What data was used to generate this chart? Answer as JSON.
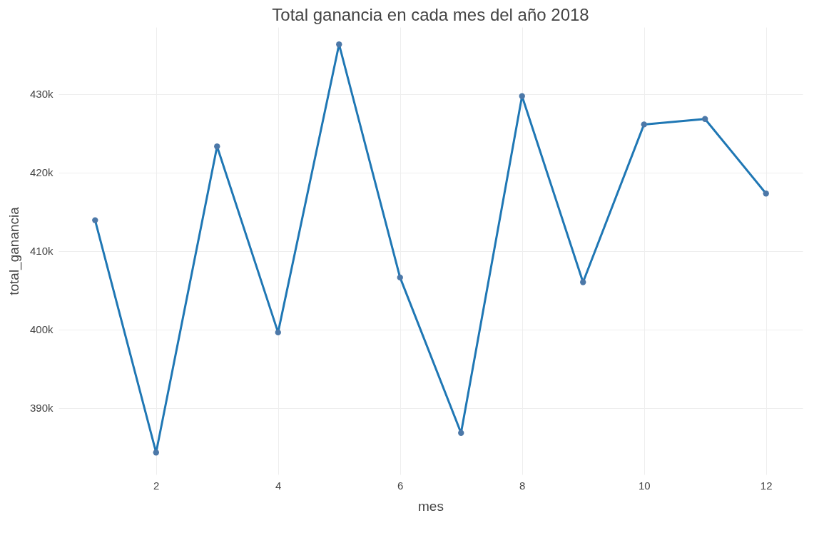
{
  "chart_data": {
    "type": "line",
    "title": "Total ganancia en cada mes del año 2018",
    "xlabel": "mes",
    "ylabel": "total_ganancia",
    "x": [
      1,
      2,
      3,
      4,
      5,
      6,
      7,
      8,
      9,
      10,
      11,
      12
    ],
    "series": [
      {
        "color": "#1f77b4",
        "values": [
          413900,
          384300,
          423300,
          399600,
          436300,
          406600,
          386800,
          429700,
          406000,
          426100,
          426800,
          417300
        ]
      }
    ],
    "xlim": [
      0.4,
      12.6
    ],
    "ylim": [
      381500,
      438500
    ],
    "xticks": [
      2,
      4,
      6,
      8,
      10,
      12
    ],
    "yticks": [
      {
        "value": 390000,
        "label": "390k"
      },
      {
        "value": 400000,
        "label": "400k"
      },
      {
        "value": 410000,
        "label": "410k"
      },
      {
        "value": 420000,
        "label": "420k"
      },
      {
        "value": 430000,
        "label": "430k"
      }
    ],
    "grid": true,
    "marker": "circle",
    "line_style": "solid"
  }
}
